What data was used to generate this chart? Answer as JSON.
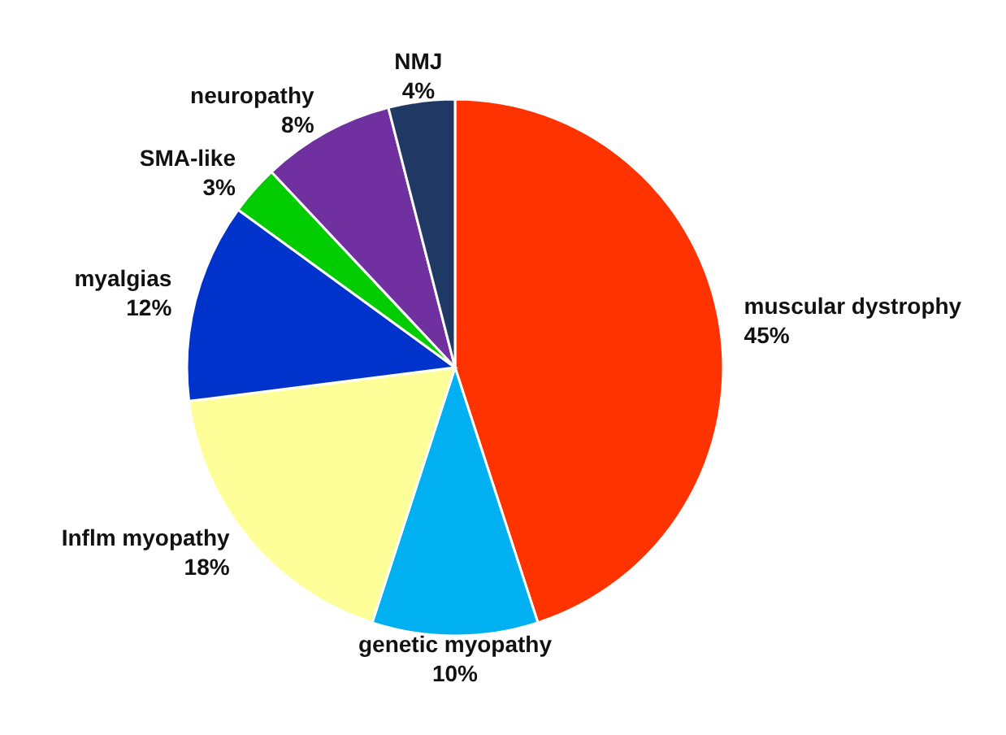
{
  "chart_data": {
    "type": "pie",
    "categories": [
      "muscular dystrophy",
      "genetic myopathy",
      "Inflm myopathy",
      "myalgias",
      "SMA-like",
      "neuropathy",
      "NMJ"
    ],
    "values": [
      45,
      10,
      18,
      12,
      3,
      8,
      4
    ],
    "value_labels": [
      "45%",
      "10%",
      "18%",
      "12%",
      "3%",
      "8%",
      "4%"
    ],
    "colors": [
      "#ff3300",
      "#00b0f0",
      "#ffff99",
      "#0033cc",
      "#00cc00",
      "#7030a0",
      "#203864"
    ]
  }
}
